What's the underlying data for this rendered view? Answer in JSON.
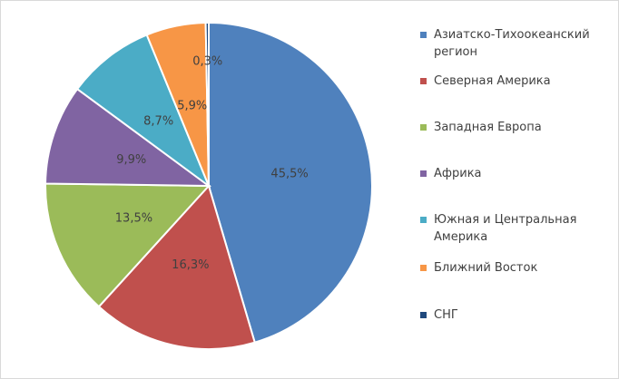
{
  "chart_data": {
    "type": "pie",
    "categories": [
      "Азиатско-Тихоокеанский регион",
      "Северная Америка",
      "Западная Европа",
      "Африка",
      "Южная и Центральная Америка",
      "Ближний Восток",
      "СНГ"
    ],
    "values": [
      45.5,
      16.3,
      13.5,
      9.9,
      8.7,
      5.9,
      0.3
    ],
    "value_labels": [
      "45,5%",
      "16,3%",
      "13,5%",
      "9,9%",
      "8,7%",
      "5,9%",
      "0,3%"
    ],
    "colors": [
      "#4f81bd",
      "#c0504d",
      "#9bbb59",
      "#8064a2",
      "#4bacc6",
      "#f79646",
      "#1f497d"
    ]
  }
}
